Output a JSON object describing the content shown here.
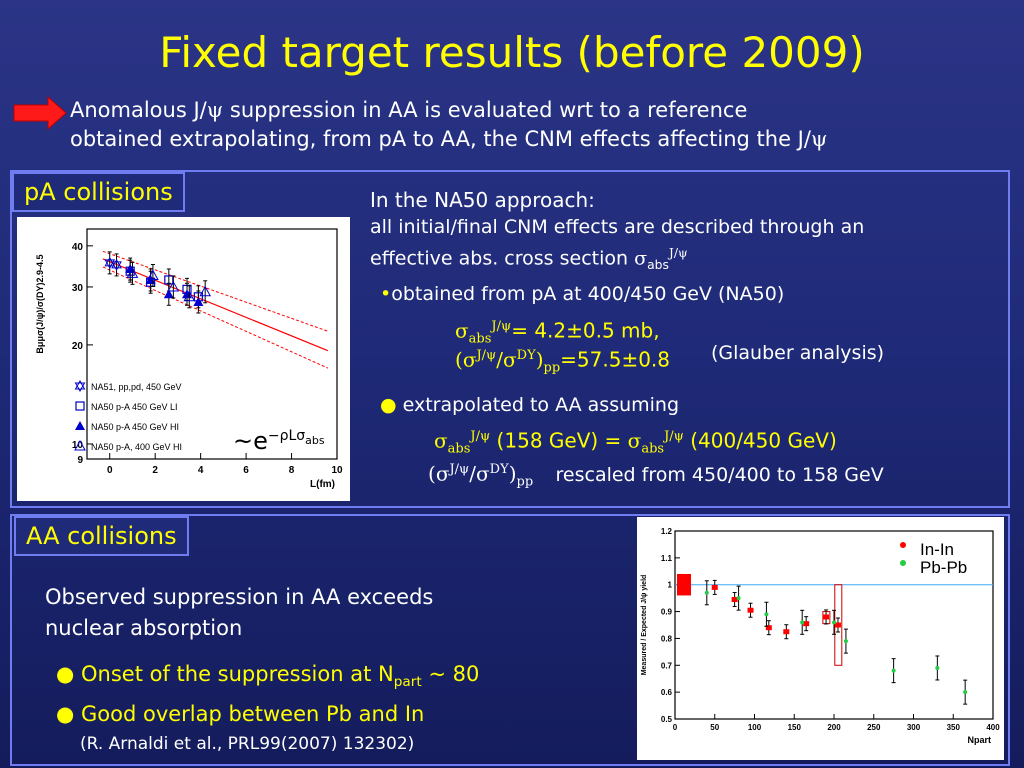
{
  "title": "Fixed target results (before 2009)",
  "intro": {
    "line1_a": "Anomalous J/",
    "psi": "ψ",
    "line1_b": " suppression in AA is evaluated wrt to a reference",
    "line2": "obtained extrapolating, from pA to AA, the CNM effects affecting the J/"
  },
  "pa": {
    "label": "pA collisions",
    "heading": "In the NA50 approach:",
    "desc1": "all initial/final CNM effects are described through an",
    "desc2": "effective abs. cross section ",
    "sigma": "σ",
    "abs": "abs",
    "jpsi": "J/ψ",
    "bullet1": "obtained from pA at 400/450 GeV (NA50)",
    "value1": "= 4.2±0.5 mb,",
    "value2": "=57.5±0.8",
    "glauber": "(Glauber analysis)",
    "bullet2": "extrapolated to AA assuming",
    "eq_left": " (158 GeV) = ",
    "eq_right": " (400/450 GeV)",
    "rescaled": "rescaled from 450/400 to 158 GeV",
    "jpsi_sup": "J/ψ",
    "dy_sup": "DY",
    "pp": "pp",
    "formula_base": "~e",
    "formula_exp": "−ρLσ",
    "formula_sub": "abs"
  },
  "aa": {
    "label": "AA collisions",
    "obs1": "Observed suppression in AA exceeds",
    "obs2": "nuclear absorption",
    "bullet1_a": "Onset of the suppression at N",
    "bullet1_sub": "part",
    "bullet1_b": " ~ 80",
    "bullet2": "Good overlap between Pb and In",
    "ref": "(R. Arnaldi et al., PRL99(2007) 132302)"
  },
  "chart_data": [
    {
      "type": "scatter",
      "title": "",
      "xlabel": "L(fm)",
      "ylabel": "Bμμσ(J/ψ)/σ(DY)2.9-4.5",
      "xlim": [
        -1,
        10
      ],
      "ylim": [
        9,
        45
      ],
      "yscale": "log",
      "xticks": [
        "0",
        "2",
        "4",
        "6",
        "8",
        "10"
      ],
      "yticks": [
        "9",
        "10",
        "20",
        "30",
        "40"
      ],
      "legend": [
        "NA51, pp,pd, 450 GeV",
        "NA50 p-A 450 GeV LI",
        "NA50 p-A 450 GeV HI",
        "NA50 p-A, 400 GeV HI"
      ],
      "series": [
        {
          "name": "NA51, pp,pd, 450 GeV",
          "x": [
            0.0,
            0.3
          ],
          "y": [
            35.5,
            35.0
          ]
        },
        {
          "name": "NA50 p-A 450 GeV LI",
          "x": [
            0.9,
            1.8,
            2.6,
            3.4,
            3.9
          ],
          "y": [
            33.5,
            31.0,
            31.5,
            29.5,
            28.0
          ]
        },
        {
          "name": "NA50 p-A 450 GeV HI",
          "x": [
            0.9,
            1.8,
            2.6,
            3.4,
            3.9
          ],
          "y": [
            34.0,
            31.5,
            28.5,
            28.5,
            27.0
          ]
        },
        {
          "name": "NA50 p-A, 400 GeV HI",
          "x": [
            1.0,
            1.9,
            2.8,
            3.5,
            4.2
          ],
          "y": [
            33.0,
            32.5,
            30.0,
            28.0,
            29.0
          ]
        }
      ],
      "fit": {
        "x": [
          -0.3,
          9.6
        ],
        "y": [
          36.5,
          19.2
        ],
        "band_upper": [
          38.5,
          22.0
        ],
        "band_lower": [
          34.5,
          17.0
        ]
      }
    },
    {
      "type": "scatter",
      "xlabel": "Npart",
      "ylabel": "Measured / Expected J/ψ yield",
      "xlim": [
        0,
        400
      ],
      "ylim": [
        0.5,
        1.2
      ],
      "xticks": [
        "0",
        "50",
        "100",
        "150",
        "200",
        "250",
        "300",
        "350",
        "400"
      ],
      "yticks": [
        "0.5",
        "0.6",
        "0.7",
        "0.8",
        "0.9",
        "1",
        "1.1",
        "1.2"
      ],
      "legend": [
        "In-In",
        "Pb-Pb"
      ],
      "series": [
        {
          "name": "In-In",
          "x": [
            50,
            75,
            95,
            118,
            140,
            165,
            190,
            205
          ],
          "y": [
            0.99,
            0.945,
            0.905,
            0.84,
            0.825,
            0.855,
            0.88,
            0.85
          ]
        },
        {
          "name": "Pb-Pb",
          "x": [
            40,
            80,
            115,
            160,
            200,
            215,
            275,
            330,
            365
          ],
          "y": [
            0.97,
            0.95,
            0.89,
            0.86,
            0.86,
            0.79,
            0.68,
            0.69,
            0.6
          ]
        }
      ]
    }
  ]
}
